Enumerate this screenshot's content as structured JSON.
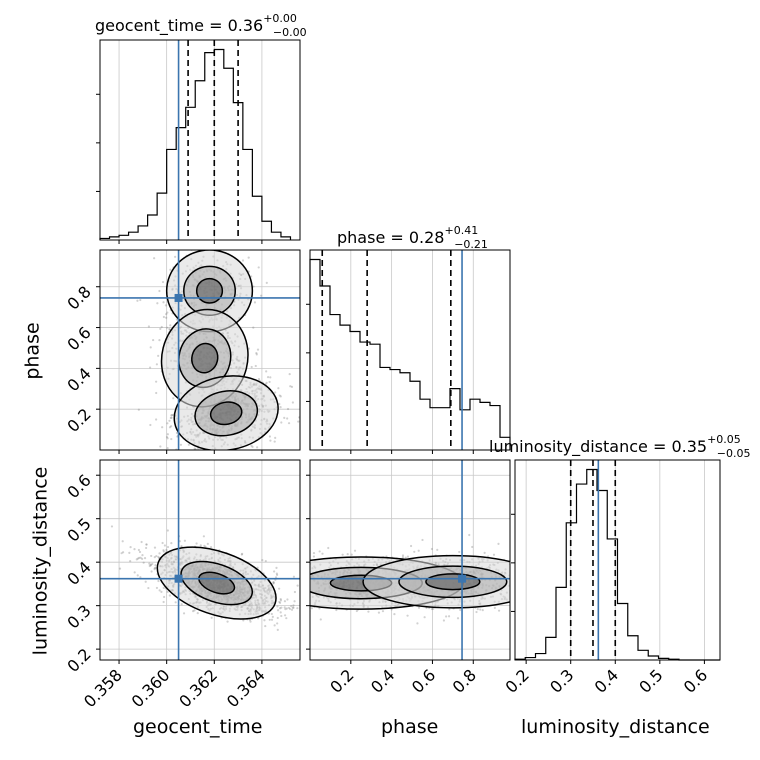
{
  "chart_data": {
    "type": "corner",
    "parameters": [
      "geocent_time",
      "phase",
      "luminosity_distance"
    ],
    "injection": {
      "geocent_time": 0.3605,
      "phase": 0.745,
      "luminosity_distance": 0.362
    },
    "titles": {
      "geocent_time": {
        "name": "geocent_time",
        "median": "0.36",
        "plus": "+0.00",
        "minus": "−0.00"
      },
      "phase": {
        "name": "phase",
        "median": "0.28",
        "plus": "+0.41",
        "minus": "−0.21"
      },
      "luminosity_distance": {
        "name": "luminosity_distance",
        "median": "0.35",
        "plus": "+0.05",
        "minus": "−0.05"
      }
    },
    "axes": {
      "geocent_time": {
        "range": [
          0.3572,
          0.3656
        ],
        "ticks": [
          0.358,
          0.36,
          0.362,
          0.364
        ],
        "ticklabels": [
          "0.358",
          "0.360",
          "0.362",
          "0.364"
        ]
      },
      "phase": {
        "range": [
          0.0,
          0.98
        ],
        "ticks": [
          0.2,
          0.4,
          0.6,
          0.8
        ],
        "ticklabels": [
          "0.2",
          "0.4",
          "0.6",
          "0.8"
        ]
      },
      "luminosity_distance": {
        "range": [
          0.175,
          0.635
        ],
        "ticks": [
          0.2,
          0.3,
          0.4,
          0.5,
          0.6
        ],
        "ticklabels": [
          "0.2",
          "0.3",
          "0.4",
          "0.5",
          "0.6"
        ]
      }
    },
    "quantiles": {
      "geocent_time": [
        0.3609,
        0.362,
        0.363
      ],
      "phase": [
        0.06,
        0.28,
        0.69
      ],
      "luminosity_distance": [
        0.3,
        0.35,
        0.4
      ]
    },
    "histograms": {
      "geocent_time": {
        "bins": [
          0.3572,
          0.3576,
          0.358,
          0.3584,
          0.3588,
          0.3592,
          0.3596,
          0.36,
          0.3604,
          0.3608,
          0.3612,
          0.3616,
          0.362,
          0.3624,
          0.3628,
          0.3632,
          0.3636,
          0.364,
          0.3644,
          0.3648,
          0.3652
        ],
        "counts": [
          1,
          2,
          3,
          5,
          9,
          16,
          30,
          58,
          72,
          85,
          102,
          120,
          122,
          110,
          88,
          58,
          28,
          12,
          5,
          2
        ]
      },
      "phase": {
        "bins": [
          0.0,
          0.049,
          0.098,
          0.147,
          0.196,
          0.245,
          0.294,
          0.343,
          0.392,
          0.441,
          0.49,
          0.539,
          0.588,
          0.637,
          0.686,
          0.735,
          0.784,
          0.833,
          0.882,
          0.931,
          0.98
        ],
        "counts": [
          180,
          155,
          128,
          118,
          112,
          102,
          100,
          78,
          76,
          73,
          65,
          48,
          40,
          40,
          58,
          38,
          48,
          45,
          42,
          12
        ]
      },
      "luminosity_distance": {
        "bins": [
          0.175,
          0.198,
          0.221,
          0.244,
          0.267,
          0.29,
          0.313,
          0.336,
          0.359,
          0.382,
          0.405,
          0.428,
          0.451,
          0.474,
          0.497,
          0.52,
          0.543,
          0.566,
          0.589,
          0.612,
          0.635
        ],
        "counts": [
          1,
          3,
          8,
          28,
          90,
          170,
          218,
          236,
          210,
          150,
          70,
          30,
          12,
          5,
          2,
          1,
          0,
          0,
          0,
          0
        ]
      }
    },
    "grid": true
  }
}
